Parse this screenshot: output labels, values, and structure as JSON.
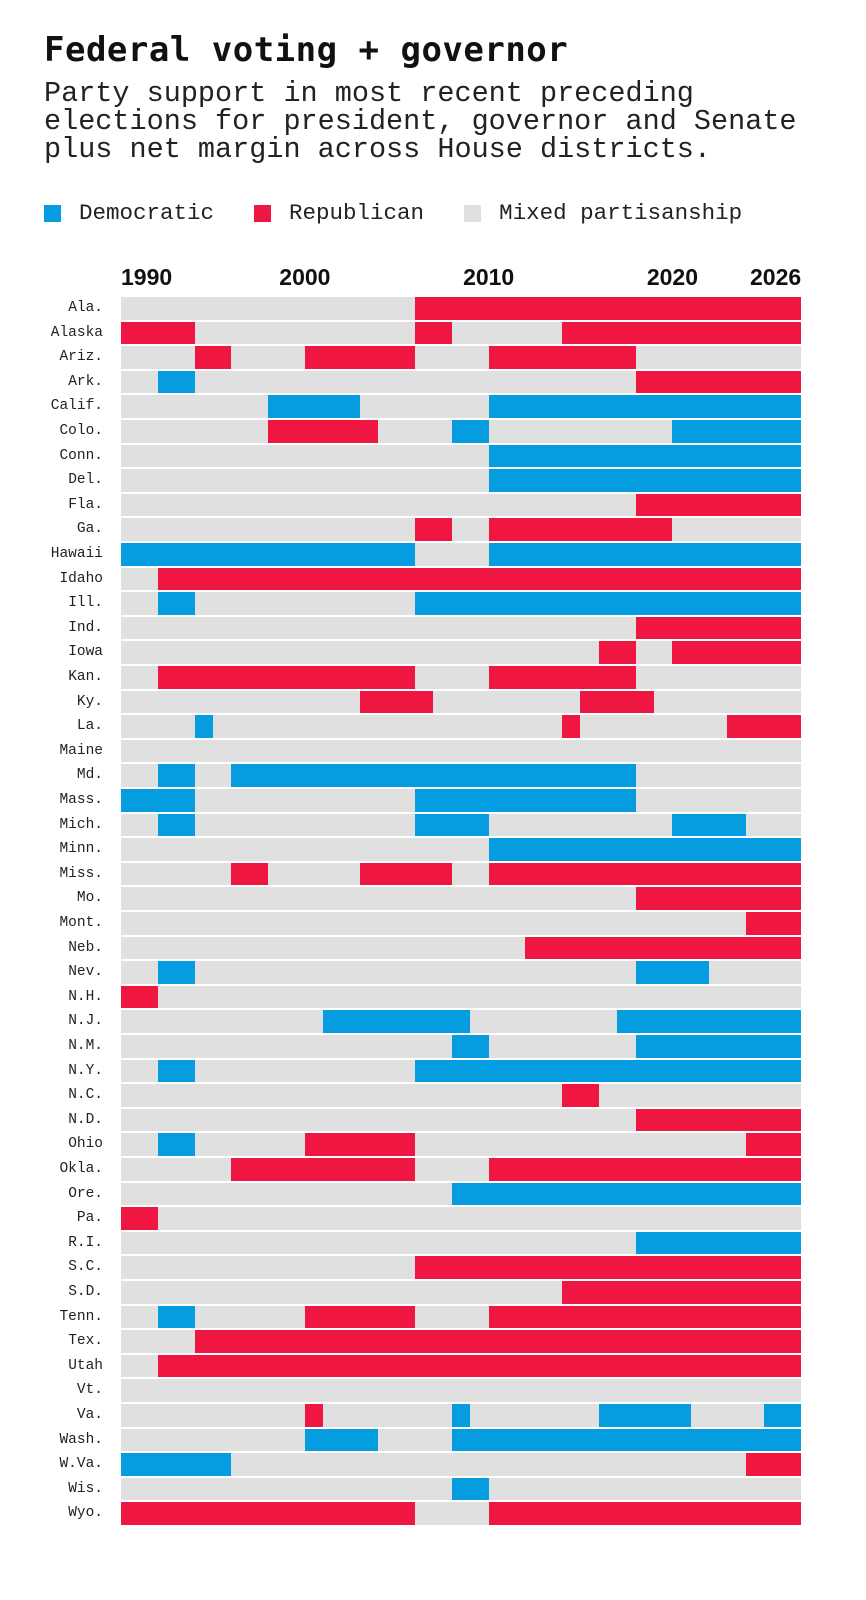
{
  "title": "Federal voting + governor",
  "subtitle": "Party support in most recent preceding elections for president, governor and Senate plus net margin across House districts.",
  "colors": {
    "D": "#069de0",
    "R": "#ef1641",
    "M": "#e0e0e0"
  },
  "legend": [
    {
      "key": "D",
      "label": "Democratic"
    },
    {
      "key": "R",
      "label": "Republican"
    },
    {
      "key": "M",
      "label": "Mixed partisanship"
    }
  ],
  "chart_data": {
    "type": "heatmap",
    "title": "Federal voting + governor",
    "x_range": [
      1990,
      2026
    ],
    "x_ticks": [
      1990,
      2000,
      2010,
      2020,
      2026
    ],
    "default": "M",
    "segment_format": "[first_year, last_year, party]",
    "rows": [
      {
        "state": "Ala.",
        "segments": [
          [
            2006,
            2026,
            "R"
          ]
        ]
      },
      {
        "state": "Alaska",
        "segments": [
          [
            1990,
            1993,
            "R"
          ],
          [
            2006,
            2007,
            "R"
          ],
          [
            2014,
            2026,
            "R"
          ]
        ]
      },
      {
        "state": "Ariz.",
        "segments": [
          [
            1994,
            1995,
            "R"
          ],
          [
            2000,
            2005,
            "R"
          ],
          [
            2010,
            2017,
            "R"
          ]
        ]
      },
      {
        "state": "Ark.",
        "segments": [
          [
            1992,
            1993,
            "D"
          ],
          [
            2018,
            2026,
            "R"
          ]
        ]
      },
      {
        "state": "Calif.",
        "segments": [
          [
            1998,
            2002,
            "D"
          ],
          [
            2010,
            2026,
            "D"
          ]
        ]
      },
      {
        "state": "Colo.",
        "segments": [
          [
            1998,
            2003,
            "R"
          ],
          [
            2008,
            2009,
            "D"
          ],
          [
            2020,
            2026,
            "D"
          ]
        ]
      },
      {
        "state": "Conn.",
        "segments": [
          [
            2010,
            2026,
            "D"
          ]
        ]
      },
      {
        "state": "Del.",
        "segments": [
          [
            2010,
            2026,
            "D"
          ]
        ]
      },
      {
        "state": "Fla.",
        "segments": [
          [
            2018,
            2026,
            "R"
          ]
        ]
      },
      {
        "state": "Ga.",
        "segments": [
          [
            2006,
            2007,
            "R"
          ],
          [
            2010,
            2019,
            "R"
          ]
        ]
      },
      {
        "state": "Hawaii",
        "segments": [
          [
            1990,
            2005,
            "D"
          ],
          [
            2010,
            2026,
            "D"
          ]
        ]
      },
      {
        "state": "Idaho",
        "segments": [
          [
            1992,
            2026,
            "R"
          ]
        ]
      },
      {
        "state": "Ill.",
        "segments": [
          [
            1992,
            1993,
            "D"
          ],
          [
            2006,
            2026,
            "D"
          ]
        ]
      },
      {
        "state": "Ind.",
        "segments": [
          [
            2018,
            2026,
            "R"
          ]
        ]
      },
      {
        "state": "Iowa",
        "segments": [
          [
            2016,
            2017,
            "R"
          ],
          [
            2020,
            2026,
            "R"
          ]
        ]
      },
      {
        "state": "Kan.",
        "segments": [
          [
            1992,
            2005,
            "R"
          ],
          [
            2010,
            2017,
            "R"
          ]
        ]
      },
      {
        "state": "Ky.",
        "segments": [
          [
            2003,
            2006,
            "R"
          ],
          [
            2015,
            2018,
            "R"
          ]
        ]
      },
      {
        "state": "La.",
        "segments": [
          [
            1994,
            1994,
            "D"
          ],
          [
            2014,
            2014,
            "R"
          ],
          [
            2023,
            2026,
            "R"
          ]
        ]
      },
      {
        "state": "Maine",
        "segments": []
      },
      {
        "state": "Md.",
        "segments": [
          [
            1992,
            1993,
            "D"
          ],
          [
            1996,
            2017,
            "D"
          ]
        ]
      },
      {
        "state": "Mass.",
        "segments": [
          [
            1990,
            1993,
            "D"
          ],
          [
            2006,
            2017,
            "D"
          ]
        ]
      },
      {
        "state": "Mich.",
        "segments": [
          [
            1992,
            1993,
            "D"
          ],
          [
            2006,
            2009,
            "D"
          ],
          [
            2020,
            2023,
            "D"
          ]
        ]
      },
      {
        "state": "Minn.",
        "segments": [
          [
            2010,
            2026,
            "D"
          ]
        ]
      },
      {
        "state": "Miss.",
        "segments": [
          [
            1996,
            1997,
            "R"
          ],
          [
            2003,
            2007,
            "R"
          ],
          [
            2010,
            2026,
            "R"
          ]
        ]
      },
      {
        "state": "Mo.",
        "segments": [
          [
            2018,
            2026,
            "R"
          ]
        ]
      },
      {
        "state": "Mont.",
        "segments": [
          [
            2024,
            2026,
            "R"
          ]
        ]
      },
      {
        "state": "Neb.",
        "segments": [
          [
            2012,
            2026,
            "R"
          ]
        ]
      },
      {
        "state": "Nev.",
        "segments": [
          [
            1992,
            1993,
            "D"
          ],
          [
            2018,
            2021,
            "D"
          ]
        ]
      },
      {
        "state": "N.H.",
        "segments": [
          [
            1990,
            1991,
            "R"
          ]
        ]
      },
      {
        "state": "N.J.",
        "segments": [
          [
            2001,
            2008,
            "D"
          ],
          [
            2017,
            2026,
            "D"
          ]
        ]
      },
      {
        "state": "N.M.",
        "segments": [
          [
            2008,
            2009,
            "D"
          ],
          [
            2018,
            2026,
            "D"
          ]
        ]
      },
      {
        "state": "N.Y.",
        "segments": [
          [
            1992,
            1993,
            "D"
          ],
          [
            2006,
            2026,
            "D"
          ]
        ]
      },
      {
        "state": "N.C.",
        "segments": [
          [
            2014,
            2015,
            "R"
          ]
        ]
      },
      {
        "state": "N.D.",
        "segments": [
          [
            2018,
            2026,
            "R"
          ]
        ]
      },
      {
        "state": "Ohio",
        "segments": [
          [
            1992,
            1993,
            "D"
          ],
          [
            2000,
            2005,
            "R"
          ],
          [
            2024,
            2026,
            "R"
          ]
        ]
      },
      {
        "state": "Okla.",
        "segments": [
          [
            1996,
            2005,
            "R"
          ],
          [
            2010,
            2026,
            "R"
          ]
        ]
      },
      {
        "state": "Ore.",
        "segments": [
          [
            2008,
            2026,
            "D"
          ]
        ]
      },
      {
        "state": "Pa.",
        "segments": [
          [
            1990,
            1991,
            "R"
          ]
        ]
      },
      {
        "state": "R.I.",
        "segments": [
          [
            2018,
            2026,
            "D"
          ]
        ]
      },
      {
        "state": "S.C.",
        "segments": [
          [
            2006,
            2026,
            "R"
          ]
        ]
      },
      {
        "state": "S.D.",
        "segments": [
          [
            2014,
            2026,
            "R"
          ]
        ]
      },
      {
        "state": "Tenn.",
        "segments": [
          [
            1992,
            1993,
            "D"
          ],
          [
            2000,
            2005,
            "R"
          ],
          [
            2010,
            2026,
            "R"
          ]
        ]
      },
      {
        "state": "Tex.",
        "segments": [
          [
            1994,
            2026,
            "R"
          ]
        ]
      },
      {
        "state": "Utah",
        "segments": [
          [
            1992,
            2026,
            "R"
          ]
        ]
      },
      {
        "state": "Vt.",
        "segments": []
      },
      {
        "state": "Va.",
        "segments": [
          [
            2000,
            2000,
            "R"
          ],
          [
            2008,
            2008,
            "D"
          ],
          [
            2016,
            2020,
            "D"
          ],
          [
            2025,
            2026,
            "D"
          ]
        ]
      },
      {
        "state": "Wash.",
        "segments": [
          [
            2000,
            2003,
            "D"
          ],
          [
            2008,
            2026,
            "D"
          ]
        ]
      },
      {
        "state": "W.Va.",
        "segments": [
          [
            1990,
            1995,
            "D"
          ],
          [
            2024,
            2026,
            "R"
          ]
        ]
      },
      {
        "state": "Wis.",
        "segments": [
          [
            2008,
            2009,
            "D"
          ]
        ]
      },
      {
        "state": "Wyo.",
        "segments": [
          [
            1990,
            2005,
            "R"
          ],
          [
            2010,
            2026,
            "R"
          ]
        ]
      }
    ]
  }
}
